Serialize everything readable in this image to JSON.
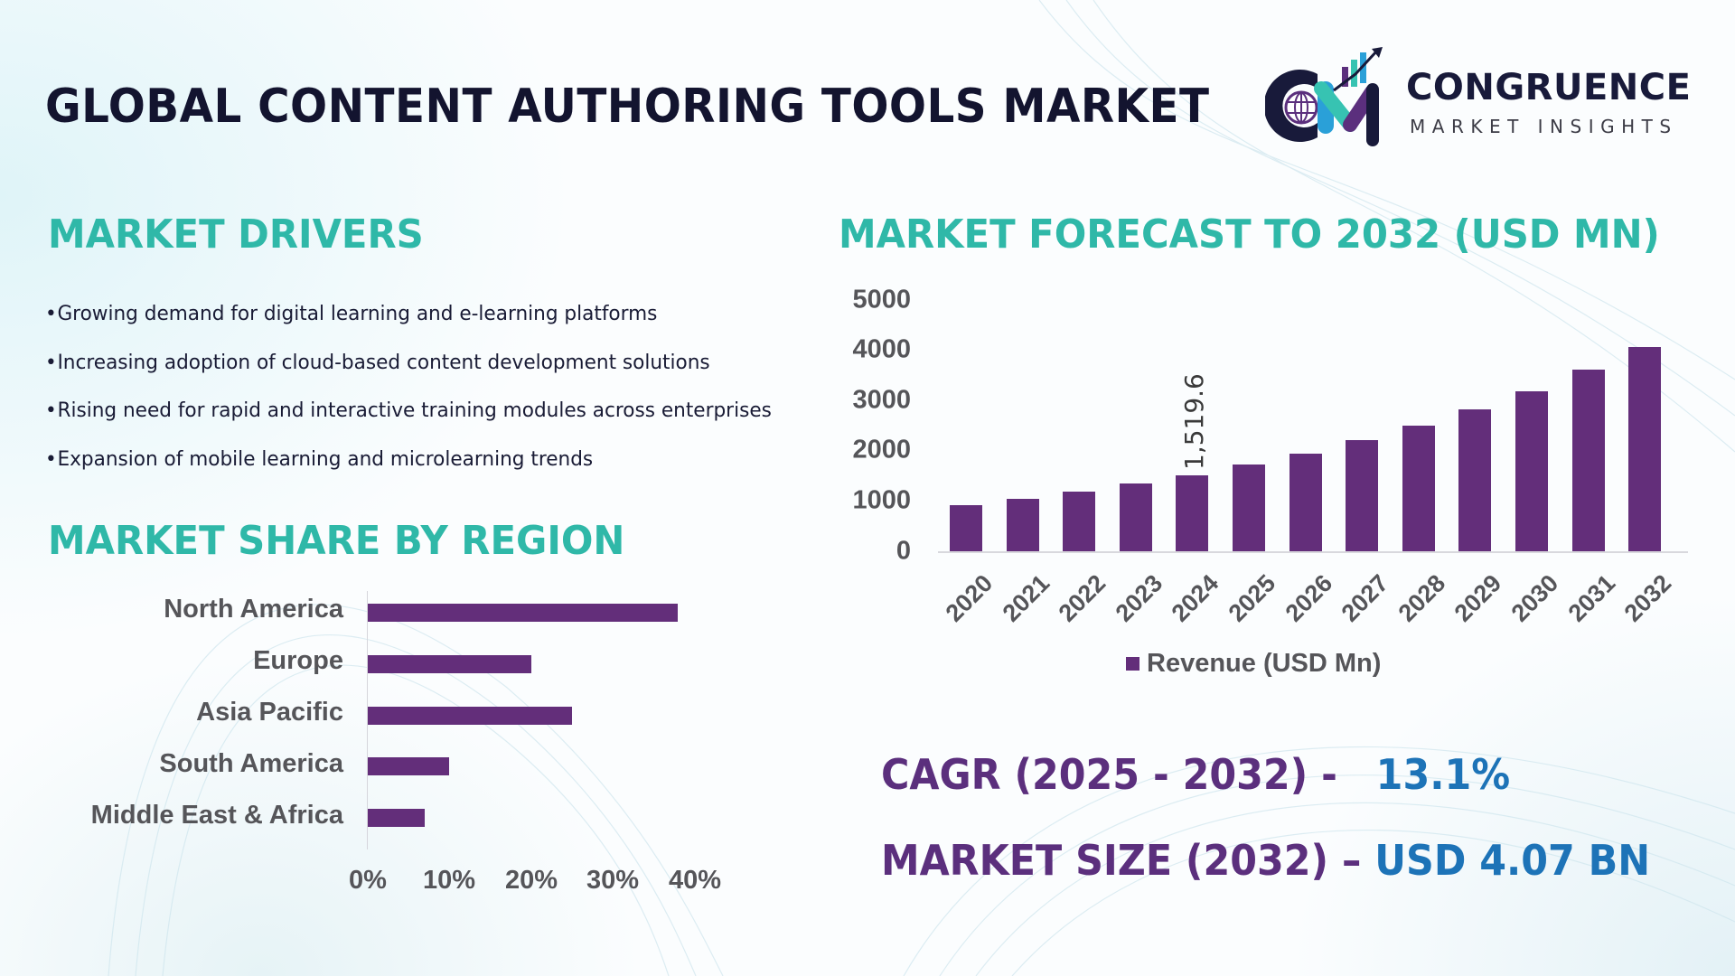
{
  "header": {
    "title": "GLOBAL CONTENT AUTHORING TOOLS MARKET",
    "logo": {
      "icon": "cm-logo-icon",
      "name": "CONGRUENCE",
      "subtitle": "MARKET INSIGHTS"
    }
  },
  "drivers": {
    "title": "MARKET DRIVERS",
    "bullet": "•",
    "items": [
      "Growing demand for digital learning and e-learning platforms",
      "Increasing adoption of cloud-based content development solutions",
      "Rising need for rapid and interactive training modules across enterprises",
      "Expansion of mobile learning and microlearning trends"
    ]
  },
  "region": {
    "title": "MARKET SHARE BY REGION"
  },
  "forecast": {
    "title": "MARKET FORECAST TO 2032 (USD MN)"
  },
  "kpis": {
    "cagr_label": "CAGR (2025 - 2032) -",
    "cagr_value": "13.1%",
    "size_label": "MARKET SIZE (2032) –",
    "size_value": "USD 4.07 BN"
  },
  "colors": {
    "bar": "#632e7a",
    "section_title": "#2fb8a8",
    "kpi_label": "#5b2f7d",
    "kpi_value": "#1d73b7",
    "title": "#13142f"
  },
  "chart_data": [
    {
      "type": "bar",
      "orientation": "horizontal",
      "title": "MARKET SHARE BY REGION",
      "categories": [
        "North America",
        "Europe",
        "Asia Pacific",
        "South America",
        "Middle East & Africa"
      ],
      "values": [
        38,
        20,
        25,
        10,
        7
      ],
      "xlabel": "",
      "ylabel": "",
      "xlim": [
        0,
        40
      ],
      "xticks": [
        "0%",
        "10%",
        "20%",
        "30%",
        "40%"
      ],
      "grid": false,
      "legend": null
    },
    {
      "type": "bar",
      "orientation": "vertical",
      "title": "MARKET FORECAST TO 2032 (USD MN)",
      "categories": [
        "2020",
        "2021",
        "2022",
        "2023",
        "2024",
        "2025",
        "2026",
        "2027",
        "2028",
        "2029",
        "2030",
        "2031",
        "2032"
      ],
      "series": [
        {
          "name": "Revenue (USD Mn)",
          "values": [
            910,
            1040,
            1190,
            1340,
            1519.6,
            1720,
            1950,
            2210,
            2495,
            2820,
            3190,
            3620,
            4070
          ]
        }
      ],
      "data_labels": [
        {
          "category": "2024",
          "text": "1,519.6"
        }
      ],
      "yticks": [
        "0",
        "1000",
        "2000",
        "3000",
        "4000",
        "5000"
      ],
      "ylim": [
        0,
        5000
      ],
      "xlabel": "",
      "ylabel": "",
      "grid": false,
      "legend": {
        "position": "bottom",
        "entries": [
          "Revenue (USD Mn)"
        ]
      }
    }
  ]
}
